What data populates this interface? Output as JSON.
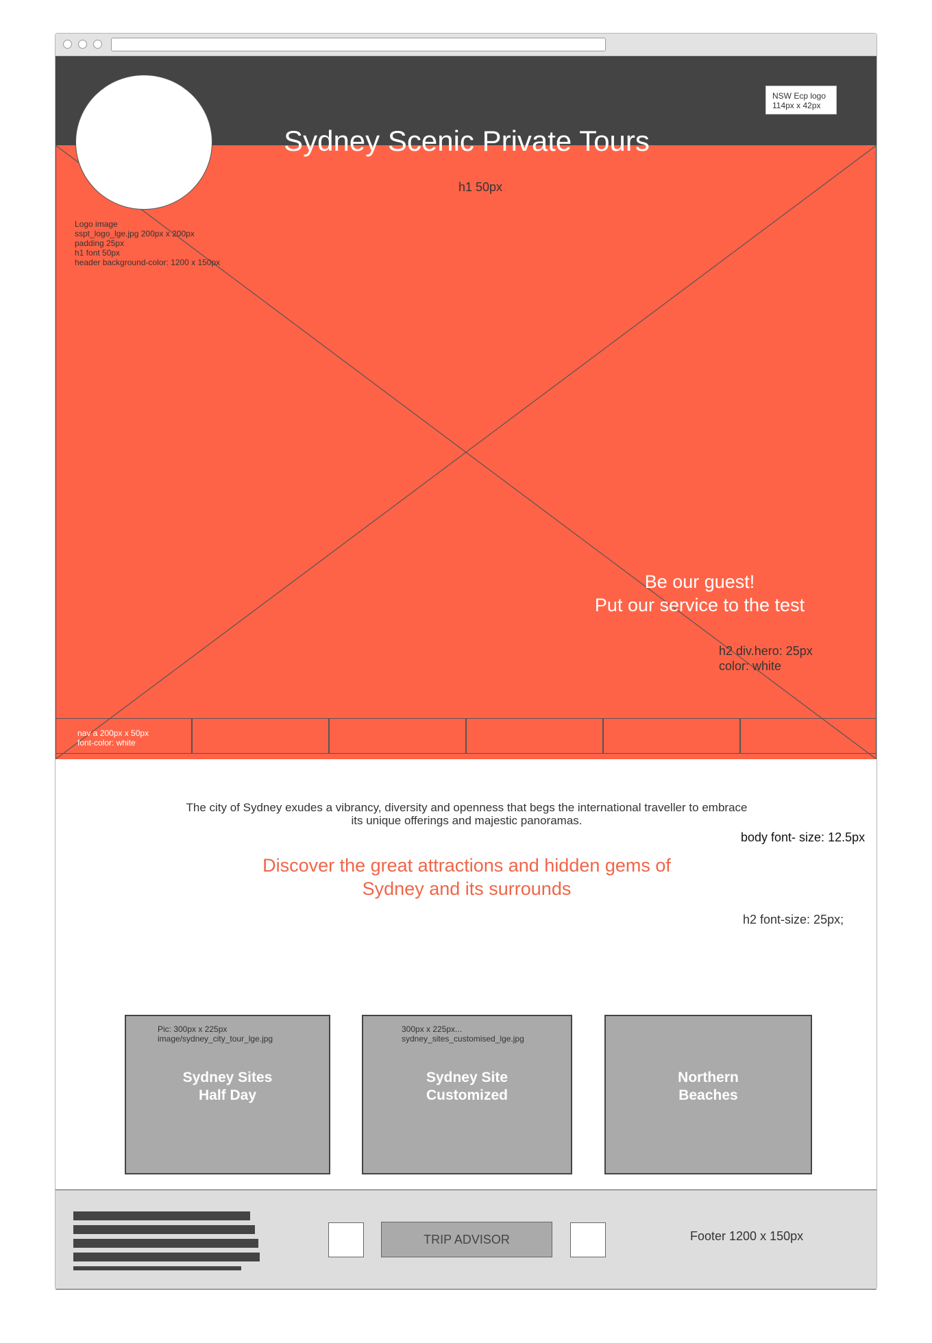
{
  "header": {
    "title": "Sydney Scenic Private Tours",
    "title_note": "h1 50px",
    "logo_notes": "Logo image\nsspt_logo_lge.jpg 200px x 200px\npadding 25px\nh1 font 50px\nheader background-color: 1200 x 150px",
    "badge_note": "NSW Ecp logo\n114px x 42px"
  },
  "hero": {
    "heading": "Be our guest!\nPut our service to the test",
    "heading_note": "h2 div.hero: 25px\ncolor: white"
  },
  "nav": {
    "note": "nav a 200px x 50px\nfont-color: white",
    "items": [
      "",
      "",
      "",
      "",
      ""
    ]
  },
  "main": {
    "intro": "The city of Sydney exudes a vibrancy, diversity and openness that begs the international traveller to embrace its unique offerings and majestic panoramas.",
    "body_note": "body font- size: 12.5px",
    "heading": "Discover the great attractions and hidden gems of Sydney and its surrounds",
    "heading_note": "h2 font-size: 25px;"
  },
  "cards": [
    {
      "note": "Pic: 300px x 225px\nimage/sydney_city_tour_lge.jpg",
      "title": "Sydney Sites\nHalf Day"
    },
    {
      "note": "300px x 225px...\nsydney_sites_customised_lge.jpg",
      "title": "Sydney Site\nCustomized"
    },
    {
      "note": "",
      "title": "Northern\nBeaches"
    }
  ],
  "footer": {
    "trip_label": "TRIP ADVISOR",
    "note": "Footer 1200 x 150px"
  },
  "colors": {
    "header_bg": "#444444",
    "hero_bg": "#ff6347",
    "accent_text": "#f06548",
    "card_bg": "#aaaaaa",
    "footer_bg": "#dddddd"
  }
}
